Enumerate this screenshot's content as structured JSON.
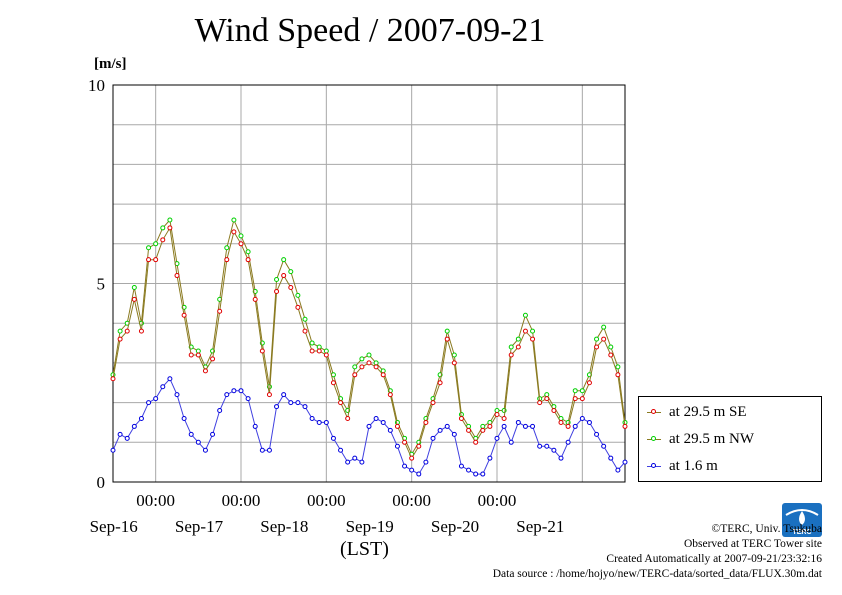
{
  "header": {
    "title": "Wind Speed / 2007-09-21",
    "unit": "[m/s]"
  },
  "x_axis_label": "(LST)",
  "legend": [
    {
      "label": "at 29.5 m SE",
      "color": "#e00000"
    },
    {
      "label": "at 29.5 m NW",
      "color": "#00d000"
    },
    {
      "label": "at 1.6 m",
      "color": "#0000e0"
    }
  ],
  "line_color": "#8a7a20",
  "credits": {
    "copyright": "©TERC, Univ. Tsukuba",
    "observed": "Observed at TERC Tower site",
    "created": "Created Automatically at 2007-09-21/23:32:16",
    "source": "Data source : /home/hojyo/new/TERC-data/sorted_data/FLUX.30m.dat"
  },
  "logo_text": "TERC",
  "chart_data": {
    "type": "line",
    "title": "Wind Speed / 2007-09-21",
    "ylabel": "[m/s]",
    "xlabel": "(LST)",
    "ylim": [
      0,
      10
    ],
    "xlim": [
      "2007-09-15 12:00",
      "2007-09-21 12:00"
    ],
    "y_ticks": [
      0,
      5,
      10
    ],
    "x_ticks": [
      {
        "x": "2007-09-16 00:00",
        "time": "00:00",
        "date": "Sep-16"
      },
      {
        "x": "2007-09-17 00:00",
        "time": "00:00",
        "date": "Sep-17"
      },
      {
        "x": "2007-09-18 00:00",
        "time": "00:00",
        "date": "Sep-18"
      },
      {
        "x": "2007-09-19 00:00",
        "time": "00:00",
        "date": "Sep-19"
      },
      {
        "x": "2007-09-20 00:00",
        "time": "00:00",
        "date": "Sep-20"
      },
      {
        "x": "2007-09-21 00:00",
        "time": "",
        "date": "Sep-21"
      }
    ],
    "grid": true,
    "legend_position": "right-bottom",
    "x": [
      "2007-09-15 12:00",
      "2007-09-15 14:00",
      "2007-09-15 16:00",
      "2007-09-15 18:00",
      "2007-09-15 20:00",
      "2007-09-15 22:00",
      "2007-09-16 00:00",
      "2007-09-16 02:00",
      "2007-09-16 04:00",
      "2007-09-16 06:00",
      "2007-09-16 08:00",
      "2007-09-16 10:00",
      "2007-09-16 12:00",
      "2007-09-16 14:00",
      "2007-09-16 16:00",
      "2007-09-16 18:00",
      "2007-09-16 20:00",
      "2007-09-16 22:00",
      "2007-09-17 00:00",
      "2007-09-17 02:00",
      "2007-09-17 04:00",
      "2007-09-17 06:00",
      "2007-09-17 08:00",
      "2007-09-17 10:00",
      "2007-09-17 12:00",
      "2007-09-17 14:00",
      "2007-09-17 16:00",
      "2007-09-17 18:00",
      "2007-09-17 20:00",
      "2007-09-17 22:00",
      "2007-09-18 00:00",
      "2007-09-18 02:00",
      "2007-09-18 04:00",
      "2007-09-18 06:00",
      "2007-09-18 08:00",
      "2007-09-18 10:00",
      "2007-09-18 12:00",
      "2007-09-18 14:00",
      "2007-09-18 16:00",
      "2007-09-18 18:00",
      "2007-09-18 20:00",
      "2007-09-18 22:00",
      "2007-09-19 00:00",
      "2007-09-19 02:00",
      "2007-09-19 04:00",
      "2007-09-19 06:00",
      "2007-09-19 08:00",
      "2007-09-19 10:00",
      "2007-09-19 12:00",
      "2007-09-19 14:00",
      "2007-09-19 16:00",
      "2007-09-19 18:00",
      "2007-09-19 20:00",
      "2007-09-19 22:00",
      "2007-09-20 00:00",
      "2007-09-20 02:00",
      "2007-09-20 04:00",
      "2007-09-20 06:00",
      "2007-09-20 08:00",
      "2007-09-20 10:00",
      "2007-09-20 12:00",
      "2007-09-20 14:00",
      "2007-09-20 16:00",
      "2007-09-20 18:00",
      "2007-09-20 20:00",
      "2007-09-20 22:00",
      "2007-09-21 00:00",
      "2007-09-21 02:00",
      "2007-09-21 04:00",
      "2007-09-21 06:00",
      "2007-09-21 08:00",
      "2007-09-21 10:00",
      "2007-09-21 12:00"
    ],
    "series": [
      {
        "name": "at 29.5 m SE",
        "values": [
          2.6,
          3.6,
          3.8,
          4.6,
          3.8,
          5.6,
          5.6,
          6.1,
          6.4,
          5.2,
          4.2,
          3.2,
          3.2,
          2.8,
          3.1,
          4.3,
          5.6,
          6.3,
          6.0,
          5.6,
          4.6,
          3.3,
          2.2,
          4.8,
          5.2,
          4.9,
          4.4,
          3.8,
          3.3,
          3.3,
          3.2,
          2.5,
          2.0,
          1.6,
          2.7,
          2.9,
          3.0,
          2.9,
          2.7,
          2.2,
          1.4,
          1.0,
          0.6,
          0.9,
          1.5,
          2.0,
          2.5,
          3.6,
          3.0,
          1.6,
          1.3,
          1.0,
          1.3,
          1.4,
          1.7,
          1.6,
          3.2,
          3.4,
          3.8,
          3.6,
          2.0,
          2.1,
          1.8,
          1.5,
          1.4,
          2.1,
          2.1,
          2.5,
          3.4,
          3.6,
          3.2,
          2.7,
          1.4
        ]
      },
      {
        "name": "at 29.5 m NW",
        "values": [
          2.7,
          3.8,
          4.0,
          4.9,
          4.0,
          5.9,
          6.0,
          6.4,
          6.6,
          5.5,
          4.4,
          3.4,
          3.3,
          2.9,
          3.3,
          4.6,
          5.9,
          6.6,
          6.2,
          5.8,
          4.8,
          3.5,
          2.4,
          5.1,
          5.6,
          5.3,
          4.7,
          4.1,
          3.5,
          3.4,
          3.3,
          2.7,
          2.1,
          1.8,
          2.9,
          3.1,
          3.2,
          3.0,
          2.8,
          2.3,
          1.5,
          1.1,
          0.7,
          1.0,
          1.6,
          2.1,
          2.7,
          3.8,
          3.2,
          1.7,
          1.4,
          1.1,
          1.4,
          1.5,
          1.8,
          1.8,
          3.4,
          3.6,
          4.2,
          3.8,
          2.1,
          2.2,
          1.9,
          1.6,
          1.5,
          2.3,
          2.3,
          2.7,
          3.6,
          3.9,
          3.4,
          2.9,
          1.5
        ]
      },
      {
        "name": "at 1.6 m",
        "values": [
          0.8,
          1.2,
          1.1,
          1.4,
          1.6,
          2.0,
          2.1,
          2.4,
          2.6,
          2.2,
          1.6,
          1.2,
          1.0,
          0.8,
          1.2,
          1.8,
          2.2,
          2.3,
          2.3,
          2.1,
          1.4,
          0.8,
          0.8,
          1.9,
          2.2,
          2.0,
          2.0,
          1.9,
          1.6,
          1.5,
          1.5,
          1.1,
          0.8,
          0.5,
          0.6,
          0.5,
          1.4,
          1.6,
          1.5,
          1.3,
          0.9,
          0.4,
          0.3,
          0.2,
          0.5,
          1.1,
          1.3,
          1.4,
          1.2,
          0.4,
          0.3,
          0.2,
          0.2,
          0.6,
          1.1,
          1.4,
          1.0,
          1.5,
          1.4,
          1.4,
          0.9,
          0.9,
          0.8,
          0.6,
          1.0,
          1.4,
          1.6,
          1.5,
          1.2,
          0.9,
          0.6,
          0.3,
          0.5
        ]
      }
    ]
  }
}
